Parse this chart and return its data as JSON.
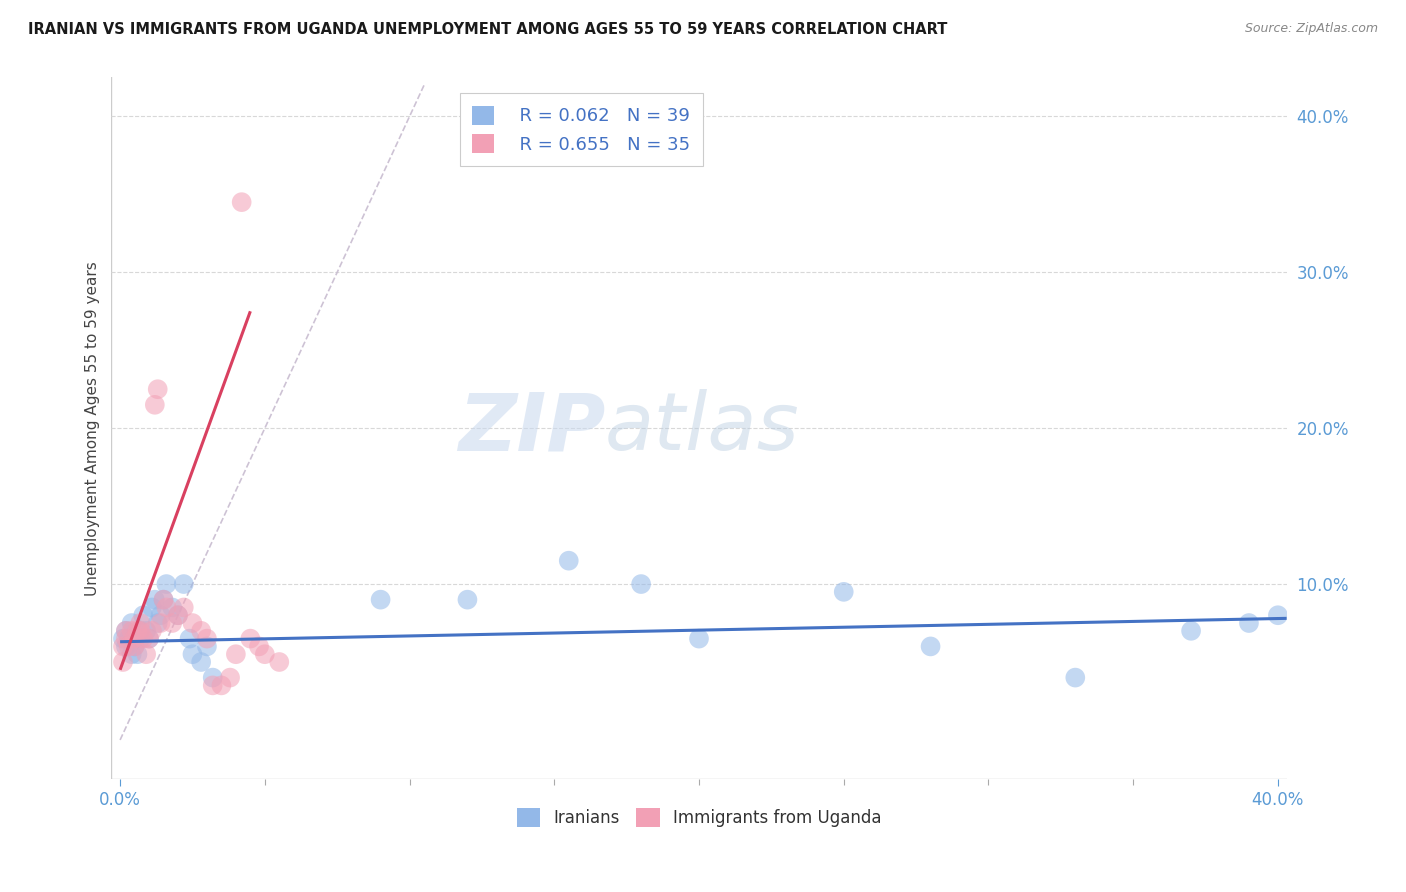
{
  "title": "IRANIAN VS IMMIGRANTS FROM UGANDA UNEMPLOYMENT AMONG AGES 55 TO 59 YEARS CORRELATION CHART",
  "source": "Source: ZipAtlas.com",
  "ylabel": "Unemployment Among Ages 55 to 59 years",
  "xlim": [
    -0.003,
    0.403
  ],
  "ylim": [
    -0.025,
    0.425
  ],
  "xticks_labeled": [
    0.0,
    0.4
  ],
  "xticks_minor": [
    0.05,
    0.1,
    0.15,
    0.2,
    0.25,
    0.3,
    0.35
  ],
  "yticks": [
    0.1,
    0.2,
    0.3,
    0.4
  ],
  "iranians_x": [
    0.001,
    0.002,
    0.002,
    0.003,
    0.004,
    0.004,
    0.005,
    0.005,
    0.006,
    0.007,
    0.007,
    0.008,
    0.009,
    0.01,
    0.011,
    0.012,
    0.013,
    0.014,
    0.015,
    0.016,
    0.018,
    0.02,
    0.022,
    0.024,
    0.025,
    0.028,
    0.03,
    0.032,
    0.09,
    0.12,
    0.155,
    0.18,
    0.2,
    0.25,
    0.28,
    0.33,
    0.37,
    0.39,
    0.4
  ],
  "iranians_y": [
    0.065,
    0.07,
    0.06,
    0.065,
    0.075,
    0.055,
    0.065,
    0.06,
    0.055,
    0.065,
    0.07,
    0.08,
    0.07,
    0.065,
    0.085,
    0.09,
    0.075,
    0.08,
    0.09,
    0.1,
    0.085,
    0.08,
    0.1,
    0.065,
    0.055,
    0.05,
    0.06,
    0.04,
    0.09,
    0.09,
    0.115,
    0.1,
    0.065,
    0.095,
    0.06,
    0.04,
    0.07,
    0.075,
    0.08
  ],
  "uganda_x": [
    0.001,
    0.001,
    0.002,
    0.002,
    0.003,
    0.004,
    0.005,
    0.005,
    0.006,
    0.007,
    0.007,
    0.008,
    0.009,
    0.01,
    0.011,
    0.012,
    0.013,
    0.014,
    0.015,
    0.016,
    0.018,
    0.02,
    0.022,
    0.025,
    0.028,
    0.03,
    0.032,
    0.035,
    0.038,
    0.04,
    0.042,
    0.045,
    0.048,
    0.05,
    0.055
  ],
  "uganda_y": [
    0.05,
    0.06,
    0.07,
    0.065,
    0.06,
    0.07,
    0.065,
    0.06,
    0.07,
    0.075,
    0.07,
    0.065,
    0.055,
    0.065,
    0.07,
    0.215,
    0.225,
    0.075,
    0.09,
    0.085,
    0.075,
    0.08,
    0.085,
    0.075,
    0.07,
    0.065,
    0.035,
    0.035,
    0.04,
    0.055,
    0.345,
    0.065,
    0.06,
    0.055,
    0.05
  ],
  "blue_line_x": [
    0.0,
    0.403
  ],
  "blue_line_y": [
    0.063,
    0.078
  ],
  "pink_line_x": [
    0.0,
    0.045
  ],
  "pink_line_y": [
    0.045,
    0.275
  ],
  "diag_line_x": [
    0.0,
    0.105
  ],
  "diag_line_y": [
    0.0,
    0.42
  ],
  "iranian_color": "#93b8e8",
  "uganda_color": "#f2a0b5",
  "blue_line_color": "#4472c4",
  "pink_line_color": "#d94060",
  "diag_line_color": "#c8bcd0",
  "watermark_zip": "ZIP",
  "watermark_atlas": "atlas",
  "legend_r1": "R = 0.062",
  "legend_n1": "N = 39",
  "legend_r2": "R = 0.655",
  "legend_n2": "N = 35",
  "legend_label1": "Iranians",
  "legend_label2": "Immigrants from Uganda"
}
